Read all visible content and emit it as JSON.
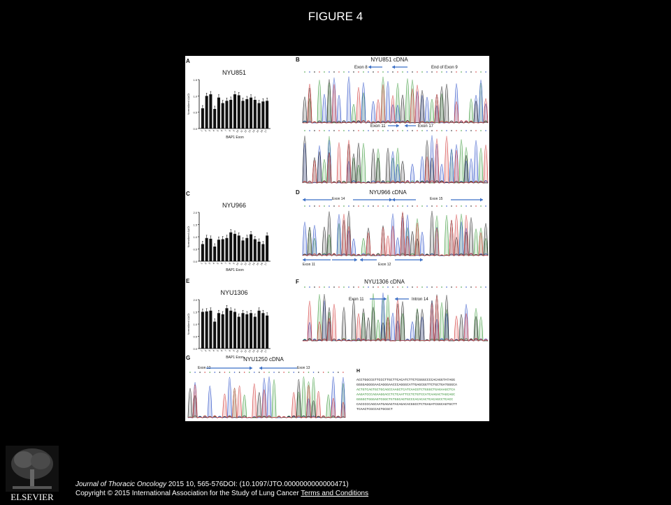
{
  "slide": {
    "title": "FIGURE 4"
  },
  "figure": {
    "panels": [
      {
        "letter": "A",
        "sample": "NYU851",
        "values": [
          0.62,
          1.0,
          1.05,
          0.6,
          0.95,
          0.78,
          0.85,
          0.88,
          1.05,
          1.02,
          0.85,
          0.9,
          0.95,
          0.88,
          0.78,
          0.83,
          0.85
        ]
      },
      {
        "letter": "C",
        "sample": "NYU966",
        "values": [
          0.7,
          0.95,
          0.92,
          0.6,
          0.88,
          0.9,
          0.95,
          1.18,
          1.12,
          1.05,
          0.85,
          0.95,
          1.1,
          0.9,
          0.8,
          0.7,
          1.05
        ]
      },
      {
        "letter": "E",
        "sample": "NYU1306",
        "values": [
          1.5,
          1.52,
          1.55,
          1.1,
          1.45,
          1.4,
          1.65,
          1.55,
          1.5,
          1.3,
          1.45,
          1.4,
          1.45,
          1.3,
          1.55,
          1.45,
          1.35
        ]
      }
    ],
    "bar_axis": {
      "ylabel": "Normalized ΔΔCt",
      "xlabel": "BAP1 Exon",
      "ticks_a": [
        "0.0",
        "0.5",
        "1.0",
        "1.5"
      ],
      "ticks_c": [
        "0.0",
        "0.5",
        "1.0",
        "1.5",
        "2.0"
      ],
      "ticks_e": [
        "0.0",
        "0.5",
        "1.0",
        "1.5",
        "2.0"
      ],
      "exons": [
        "1",
        "2",
        "3",
        "4",
        "5",
        "6",
        "7",
        "8",
        "9",
        "10",
        "11",
        "12",
        "13",
        "14",
        "15",
        "16",
        "17"
      ]
    },
    "b": {
      "letter": "B",
      "title": "NYU851 cDNA",
      "label1": "Exon 8",
      "label2": "End of Exon 9",
      "label3": "Exon 11",
      "label4": "Exon 17"
    },
    "d": {
      "letter": "D",
      "title": "NYU966 cDNA",
      "label1": "Exon 14",
      "label2": "Exon 15",
      "label3": "Exon 11",
      "label4": "Exon 12"
    },
    "f": {
      "letter": "F",
      "title": "NYU1306 cDNA",
      "label1": "Exon 11",
      "label2": "Intron 14"
    },
    "g": {
      "letter": "G",
      "title": "NYU1250  cDNA",
      "label1": "Exon 12",
      "label2": "Exon 13"
    },
    "h": {
      "letter": "H",
      "seq": [
        "ACCTGGCCGTTCCCTTGCTTCACATCTTCTCGGGCCCCACAGGTATAGG",
        "GGGGAGGGGAACAGGGAACCCAGGGCATTGAGCGGTTCTGCTGATGGGCA",
        "ACTGTCAGTGCTGCAGCCAAGCTCATCAACGTCTGGGCTGAGAAGCTCA",
        "AAGATCCCAGAAGGACCTCTCAATTCCTCTGTCCATCAAGACTAGCAGC",
        "GGGGCTGGGAGTCGGCTGTGGCAGTGCCCACACACTCACAGCCTCACC",
        "CACCCCCAGCAATGAGAGTACAGACACGGCCTCTGAGATCGGCAGTGCTT",
        "TCAACTCGCCACTGCGCT"
      ]
    }
  },
  "citation": {
    "journal": "Journal of Thoracic Oncology",
    "details": " 2015 10, 565-576DOI: (10.1097/JTO.0000000000000471)",
    "copyright": "Copyright © 2015 International Association for the Study of Lung Cancer",
    "terms_link": "Terms and Conditions"
  },
  "logo": {
    "text": "ELSEVIER"
  },
  "colors": {
    "arrow": "#3b6fc6",
    "trace_a": "#3c9a3c",
    "trace_c": "#2b4fc7",
    "trace_g": "#222222",
    "trace_t": "#d23b3b"
  }
}
